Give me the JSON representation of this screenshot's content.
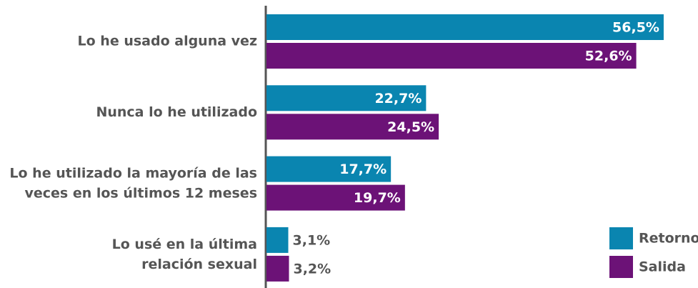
{
  "chart_data": {
    "type": "bar",
    "orientation": "horizontal",
    "categories": [
      "Lo he usado alguna vez",
      "Nunca lo he utilizado",
      "Lo he utilizado la mayoría de las\nveces en los últimos 12 meses",
      "Lo usé en la última\nrelación sexual"
    ],
    "series": [
      {
        "name": "Retorno",
        "color": "#0a85b0",
        "values": [
          56.5,
          22.7,
          17.7,
          3.1
        ],
        "value_labels": [
          "56,5%",
          "22,7%",
          "17,7%",
          "3,1%"
        ]
      },
      {
        "name": "Salida",
        "color": "#6c1277",
        "values": [
          52.6,
          24.5,
          19.7,
          3.2
        ],
        "value_labels": [
          "52,6%",
          "24,5%",
          "19,7%",
          "3,2%"
        ]
      }
    ],
    "legend": "bottom-right"
  }
}
